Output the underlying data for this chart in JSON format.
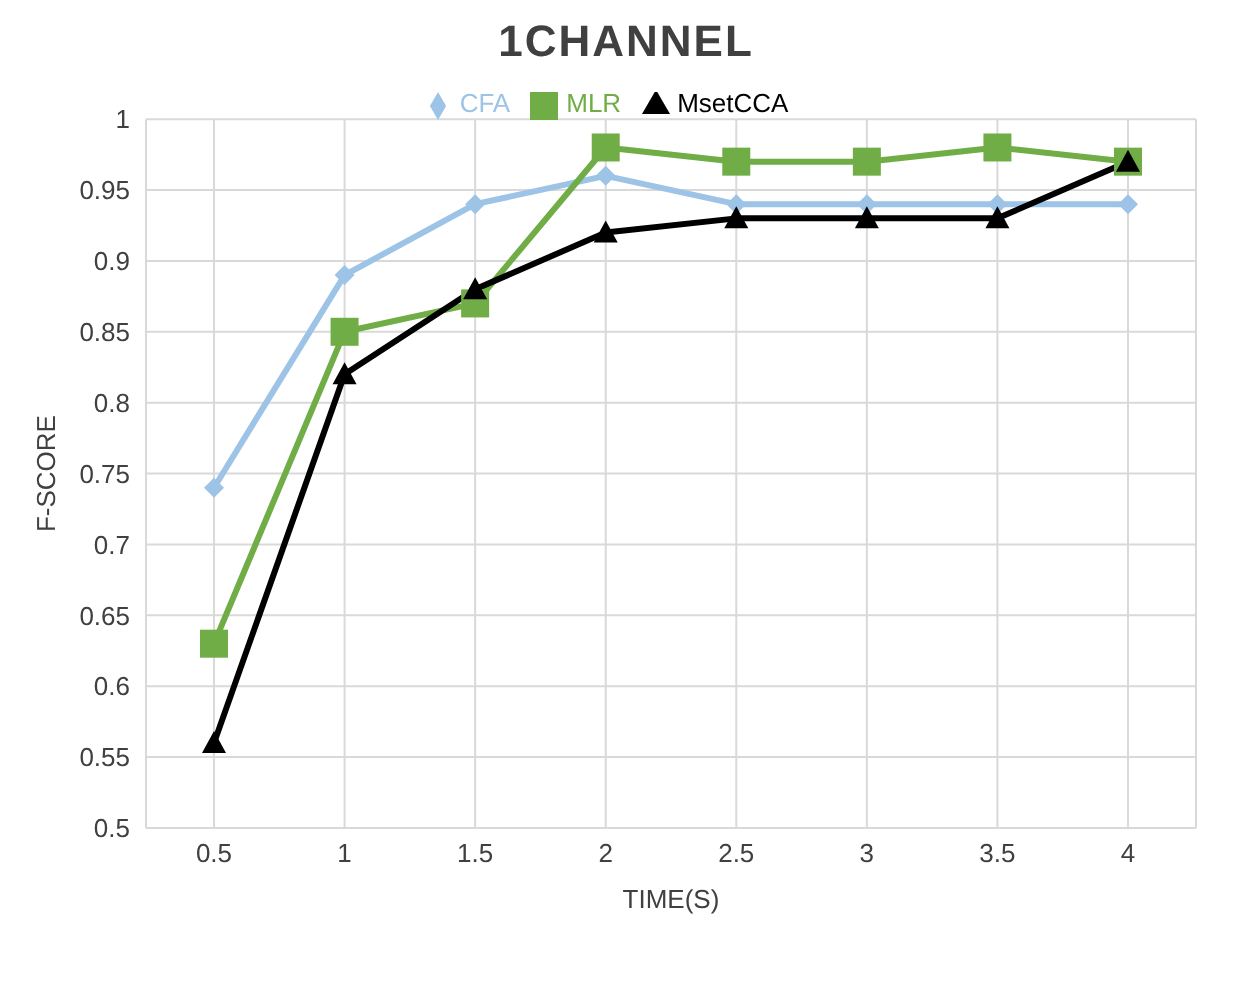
{
  "chart_data": {
    "type": "line",
    "title": "1CHANNEL",
    "xlabel": "TIME(S)",
    "ylabel": "F-SCORE",
    "categories": [
      "0.5",
      "1",
      "1.5",
      "2",
      "2.5",
      "3",
      "3.5",
      "4"
    ],
    "series": [
      {
        "name": "CFA",
        "color": "#9dc3e6",
        "marker": "diamond",
        "values": [
          0.74,
          0.89,
          0.94,
          0.96,
          0.94,
          0.94,
          0.94,
          0.94
        ]
      },
      {
        "name": "MLR",
        "color": "#70ad47",
        "marker": "square",
        "values": [
          0.63,
          0.85,
          0.87,
          0.98,
          0.97,
          0.97,
          0.98,
          0.97
        ]
      },
      {
        "name": "MsetCCA",
        "color": "#000000",
        "marker": "triangle",
        "values": [
          0.56,
          0.82,
          0.88,
          0.92,
          0.93,
          0.93,
          0.93,
          0.97
        ]
      }
    ],
    "ylim": [
      0.5,
      1
    ],
    "yticks": [
      0.5,
      0.55,
      0.6,
      0.65,
      0.7,
      0.75,
      0.8,
      0.85,
      0.9,
      0.95,
      1
    ],
    "grid": true,
    "legend": "top"
  }
}
